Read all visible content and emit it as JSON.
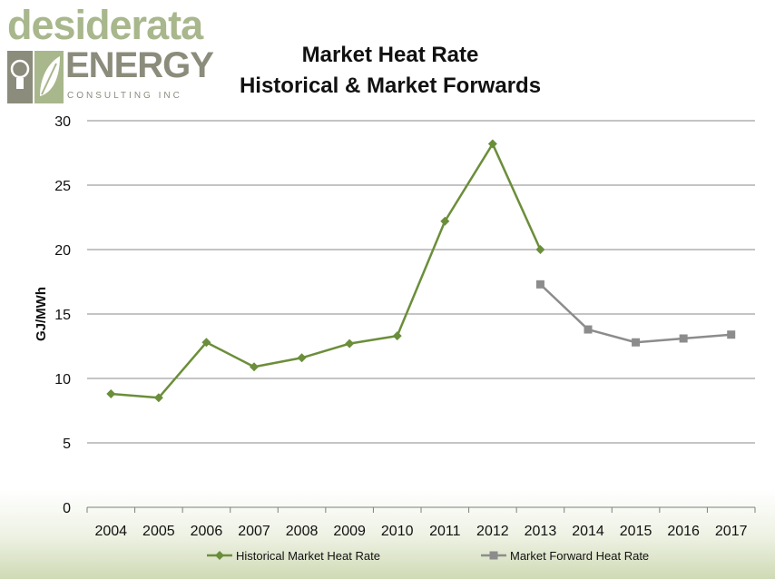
{
  "logo": {
    "line1": "desiderata",
    "line2": "ENERGY",
    "line3": "CONSULTING INC",
    "colors": {
      "green": "#a8b78c",
      "gray": "#8c8c7c"
    }
  },
  "chart_data": {
    "type": "line",
    "title": [
      "Market Heat Rate",
      "Historical & Market Forwards"
    ],
    "ylabel": "GJ/MWh",
    "xlabel": "",
    "ylim": [
      0,
      30
    ],
    "yticks": [
      0,
      5,
      10,
      15,
      20,
      25,
      30
    ],
    "grid": true,
    "legend_position": "bottom",
    "categories": [
      "2004",
      "2005",
      "2006",
      "2007",
      "2008",
      "2009",
      "2010",
      "2011",
      "2012",
      "2013",
      "2014",
      "2015",
      "2016",
      "2017"
    ],
    "series": [
      {
        "name": "Historical Market Heat Rate",
        "marker": "diamond",
        "color": "#6b8e3a",
        "values": [
          8.8,
          8.5,
          12.8,
          10.9,
          11.6,
          12.7,
          13.3,
          22.2,
          28.2,
          20.0,
          null,
          null,
          null,
          null
        ]
      },
      {
        "name": "Market Forward Heat Rate",
        "marker": "square",
        "color": "#8c8c8c",
        "values": [
          null,
          null,
          null,
          null,
          null,
          null,
          null,
          null,
          null,
          17.3,
          13.8,
          12.8,
          13.1,
          13.4
        ]
      }
    ]
  }
}
